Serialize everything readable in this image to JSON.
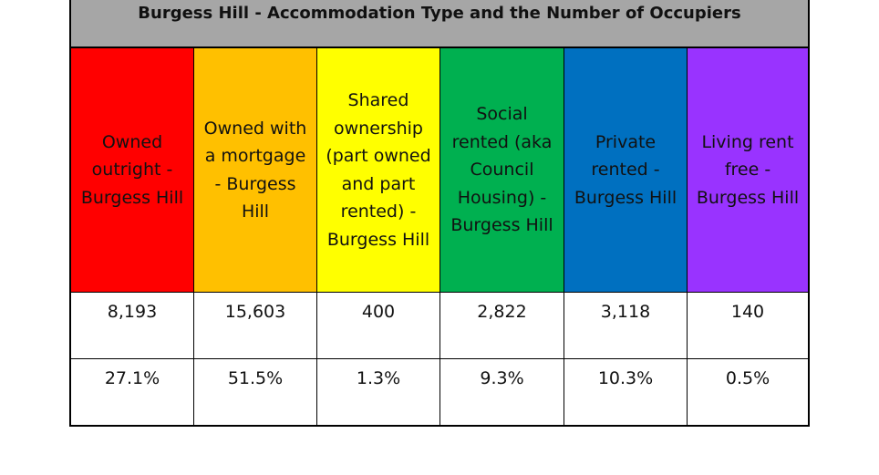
{
  "title": "Burgess Hill - Accommodation Type and the Number of Occupiers",
  "columns": [
    {
      "label": "Owned outright - Burgess Hill",
      "color": "#ff0000",
      "count": "8,193",
      "percent": "27.1%"
    },
    {
      "label": "Owned with a mortgage - Burgess Hill",
      "color": "#ffc000",
      "count": "15,603",
      "percent": "51.5%"
    },
    {
      "label": "Shared ownership (part owned and part rented) - Burgess Hill",
      "color": "#ffff00",
      "count": "400",
      "percent": "1.3%"
    },
    {
      "label": "Social rented (aka Council Housing) - Burgess Hill",
      "color": "#00b050",
      "count": "2,822",
      "percent": "9.3%"
    },
    {
      "label": "Private rented - Burgess Hill",
      "color": "#0070c0",
      "count": "3,118",
      "percent": "10.3%"
    },
    {
      "label": "Living rent free - Burgess Hill",
      "color": "#9933ff",
      "count": "140",
      "percent": "0.5%"
    }
  ],
  "title_bar_color": "#a6a6a6"
}
